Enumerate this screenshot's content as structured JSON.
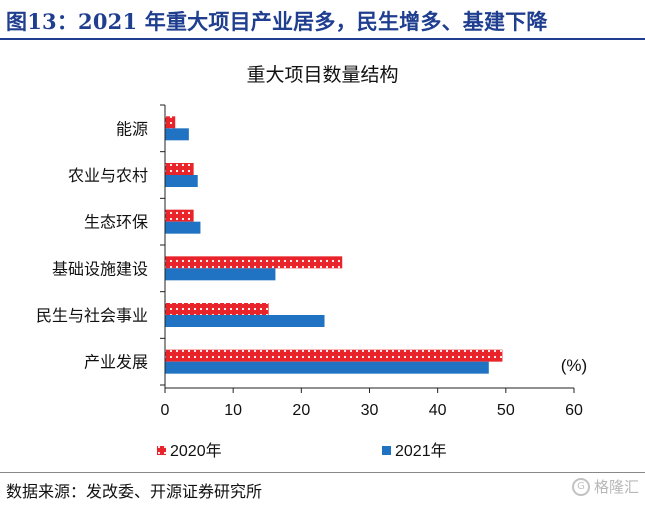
{
  "figure": {
    "title": "图13：2021 年重大项目产业居多，民生增多、基建下降",
    "source": "数据来源：发改委、开源证券研究所",
    "watermark": "格隆汇"
  },
  "colors": {
    "series_2020": "#e8242a",
    "series_2021": "#1f73c2",
    "title": "#1f3e8f"
  },
  "chart_data": {
    "type": "bar",
    "orientation": "horizontal",
    "title": "重大项目数量结构",
    "unit_label": "(%)",
    "categories": [
      "能源",
      "农业与农村",
      "生态环保",
      "基础设施建设",
      "民生与社会事业",
      "产业发展"
    ],
    "series": [
      {
        "name": "2020年",
        "values": [
          1.5,
          4.2,
          4.2,
          26.0,
          15.2,
          49.5
        ]
      },
      {
        "name": "2021年",
        "values": [
          3.5,
          4.8,
          5.2,
          16.2,
          23.4,
          47.5
        ]
      }
    ],
    "xlim": [
      0,
      60
    ],
    "xticks": [
      "0",
      "10",
      "20",
      "30",
      "40",
      "50",
      "60"
    ],
    "grid": false,
    "legend": "bottom"
  }
}
